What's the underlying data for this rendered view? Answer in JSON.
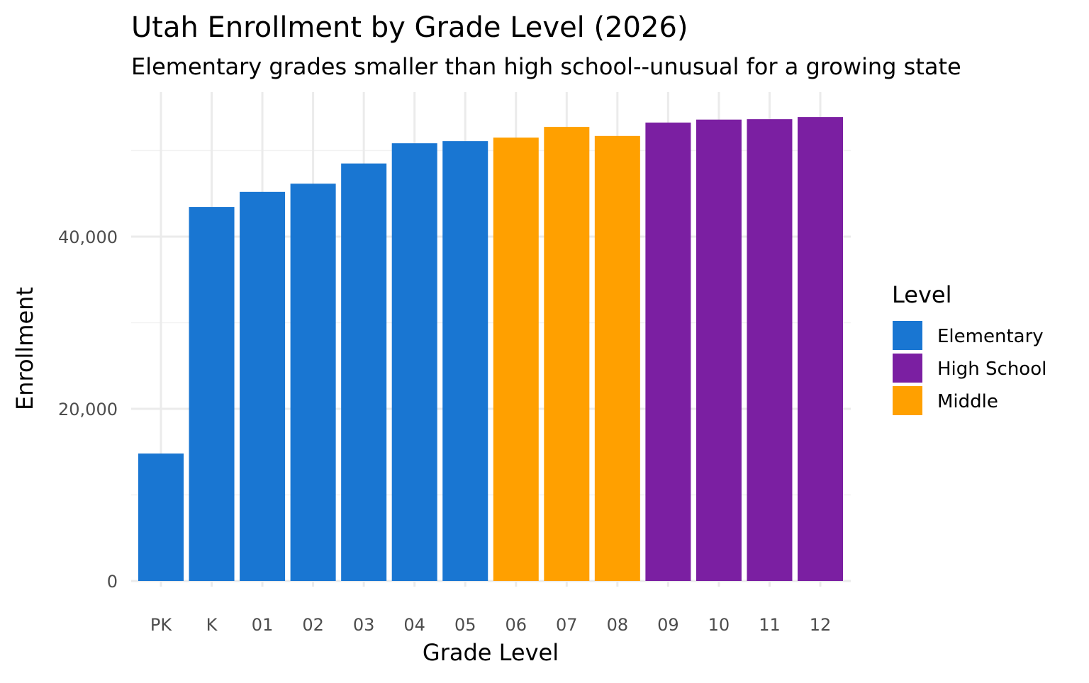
{
  "chart_data": {
    "type": "bar",
    "title": "Utah Enrollment by Grade Level (2026)",
    "subtitle": "Elementary grades smaller than high school--unusual for a growing state",
    "xlabel": "Grade Level",
    "ylabel": "Enrollment",
    "ylim": [
      0,
      55000
    ],
    "yticks": [
      0,
      20000,
      40000
    ],
    "ytick_labels": [
      "0",
      "20,000",
      "40,000"
    ],
    "grid": true,
    "categories": [
      "PK",
      "K",
      "01",
      "02",
      "03",
      "04",
      "05",
      "06",
      "07",
      "08",
      "09",
      "10",
      "11",
      "12"
    ],
    "values": [
      14800,
      43450,
      45200,
      46150,
      48500,
      50850,
      51100,
      51500,
      52750,
      51700,
      53250,
      53600,
      53650,
      53900
    ],
    "levels": [
      "Elementary",
      "Elementary",
      "Elementary",
      "Elementary",
      "Elementary",
      "Elementary",
      "Elementary",
      "Middle",
      "Middle",
      "Middle",
      "High School",
      "High School",
      "High School",
      "High School"
    ],
    "legend": {
      "title": "Level",
      "placement": "right",
      "entries": [
        {
          "label": "Elementary",
          "color": "#1976D2"
        },
        {
          "label": "High School",
          "color": "#7B1FA2"
        },
        {
          "label": "Middle",
          "color": "#FFA000"
        }
      ]
    }
  }
}
